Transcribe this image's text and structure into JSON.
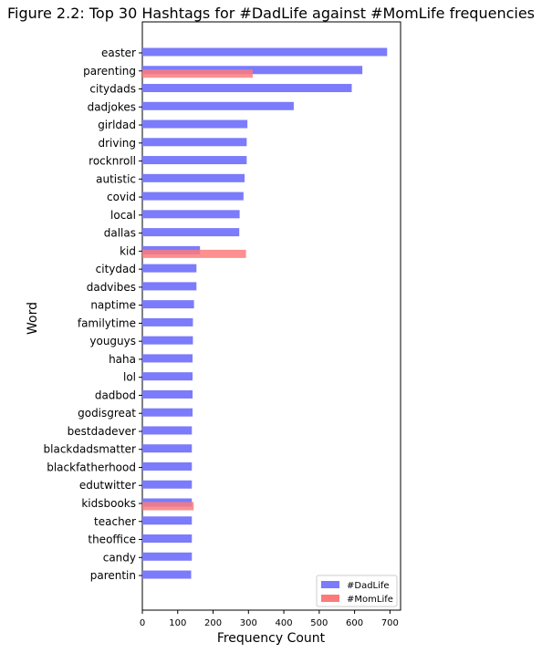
{
  "chart_data": {
    "type": "bar",
    "orientation": "horizontal",
    "title": "Figure 2.2: Top 30 Hashtags for #DadLife against #MomLife frequencies",
    "xlabel": "Frequency Count",
    "ylabel": "Word",
    "xlim": [
      0,
      730
    ],
    "xticks": [
      0,
      100,
      200,
      300,
      400,
      500,
      600,
      700
    ],
    "grid": false,
    "legend_position": "lower-right",
    "categories": [
      "easter",
      "parenting",
      "citydads",
      "dadjokes",
      "girldad",
      "driving",
      "rocknroll",
      "autistic",
      "covid",
      "local",
      "dallas",
      "kid",
      "citydad",
      "dadvibes",
      "naptime",
      "familytime",
      "youguys",
      "haha",
      "lol",
      "dadbod",
      "godisgreat",
      "bestdadever",
      "blackdadsmatter",
      "blackfatherhood",
      "edutwitter",
      "kidsbooks",
      "teacher",
      "theoffice",
      "candy",
      "parentin"
    ],
    "series": [
      {
        "name": "#DadLife",
        "color": "#7b7bfb",
        "offset": "above",
        "values": [
          692,
          622,
          592,
          428,
          297,
          295,
          295,
          289,
          286,
          275,
          274,
          163,
          153,
          153,
          146,
          143,
          143,
          142,
          142,
          142,
          142,
          140,
          140,
          140,
          140,
          140,
          140,
          140,
          140,
          138
        ]
      },
      {
        "name": "#MomLife",
        "color": "#fb7b7b",
        "offset": "below",
        "values": [
          null,
          312,
          null,
          null,
          null,
          null,
          null,
          null,
          null,
          null,
          null,
          293,
          null,
          null,
          null,
          null,
          null,
          null,
          null,
          null,
          null,
          null,
          null,
          null,
          null,
          145,
          null,
          null,
          null,
          null
        ]
      }
    ]
  }
}
